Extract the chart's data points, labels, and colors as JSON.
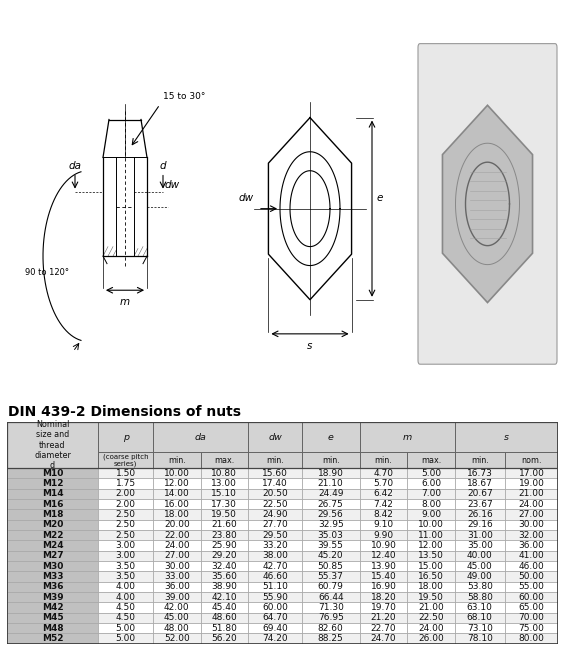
{
  "title": "DIN 439-2 Dimensions of nuts",
  "rows": [
    [
      "M10",
      "1.50",
      "10.00",
      "10.80",
      "15.60",
      "18.90",
      "4.70",
      "5.00",
      "16.73",
      "17.00"
    ],
    [
      "M12",
      "1.75",
      "12.00",
      "13.00",
      "17.40",
      "21.10",
      "5.70",
      "6.00",
      "18.67",
      "19.00"
    ],
    [
      "M14",
      "2.00",
      "14.00",
      "15.10",
      "20.50",
      "24.49",
      "6.42",
      "7.00",
      "20.67",
      "21.00"
    ],
    [
      "M16",
      "2.00",
      "16.00",
      "17.30",
      "22.50",
      "26.75",
      "7.42",
      "8.00",
      "23.67",
      "24.00"
    ],
    [
      "M18",
      "2.50",
      "18.00",
      "19.50",
      "24.90",
      "29.56",
      "8.42",
      "9.00",
      "26.16",
      "27.00"
    ],
    [
      "M20",
      "2.50",
      "20.00",
      "21.60",
      "27.70",
      "32.95",
      "9.10",
      "10.00",
      "29.16",
      "30.00"
    ],
    [
      "M22",
      "2.50",
      "22.00",
      "23.80",
      "29.50",
      "35.03",
      "9.90",
      "11.00",
      "31.00",
      "32.00"
    ],
    [
      "M24",
      "3.00",
      "24.00",
      "25.90",
      "33.20",
      "39.55",
      "10.90",
      "12.00",
      "35.00",
      "36.00"
    ],
    [
      "M27",
      "3.00",
      "27.00",
      "29.20",
      "38.00",
      "45.20",
      "12.40",
      "13.50",
      "40.00",
      "41.00"
    ],
    [
      "M30",
      "3.50",
      "30.00",
      "32.40",
      "42.70",
      "50.85",
      "13.90",
      "15.00",
      "45.00",
      "46.00"
    ],
    [
      "M33",
      "3.50",
      "33.00",
      "35.60",
      "46.60",
      "55.37",
      "15.40",
      "16.50",
      "49.00",
      "50.00"
    ],
    [
      "M36",
      "4.00",
      "36.00",
      "38.90",
      "51.10",
      "60.79",
      "16.90",
      "18.00",
      "53.80",
      "55.00"
    ],
    [
      "M39",
      "4.00",
      "39.00",
      "42.10",
      "55.90",
      "66.44",
      "18.20",
      "19.50",
      "58.80",
      "60.00"
    ],
    [
      "M42",
      "4.50",
      "42.00",
      "45.40",
      "60.00",
      "71.30",
      "19.70",
      "21.00",
      "63.10",
      "65.00"
    ],
    [
      "M45",
      "4.50",
      "45.00",
      "48.60",
      "64.70",
      "76.95",
      "21.20",
      "22.50",
      "68.10",
      "70.00"
    ],
    [
      "M48",
      "5.00",
      "48.00",
      "51.80",
      "69.40",
      "82.60",
      "22.70",
      "24.00",
      "73.10",
      "75.00"
    ],
    [
      "M52",
      "5.00",
      "52.00",
      "56.20",
      "74.20",
      "88.25",
      "24.70",
      "26.00",
      "78.10",
      "80.00"
    ]
  ],
  "bg_color": "#ffffff",
  "header_bg": "#d3d3d3",
  "first_col_bg": "#c0c0c0",
  "border_color": "#666666",
  "col_widths_rel": [
    1.5,
    0.9,
    0.78,
    0.78,
    0.88,
    0.95,
    0.78,
    0.78,
    0.82,
    0.88
  ],
  "diagram_label_fontsize": 7.5,
  "table_data_fontsize": 6.5,
  "table_header_fontsize": 6.8
}
